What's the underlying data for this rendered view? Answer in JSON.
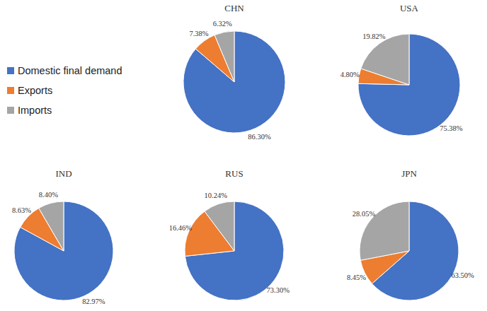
{
  "chart_data": [
    {
      "type": "pie",
      "title": "CHN",
      "categories": [
        "Domestic final demand",
        "Exports",
        "Imports"
      ],
      "values": [
        86.3,
        7.38,
        6.32
      ],
      "value_labels": [
        "86.30%",
        "7.38%",
        "6.32%"
      ],
      "colors": [
        "#4472c4",
        "#ed7d31",
        "#a5a5a5"
      ],
      "data_labels": true,
      "legend": "left"
    },
    {
      "type": "pie",
      "title": "USA",
      "categories": [
        "Domestic final demand",
        "Exports",
        "Imports"
      ],
      "values": [
        75.38,
        4.8,
        19.82
      ],
      "value_labels": [
        "75.38%",
        "4.80%",
        "19.82%"
      ],
      "colors": [
        "#4472c4",
        "#ed7d31",
        "#a5a5a5"
      ],
      "data_labels": true
    },
    {
      "type": "pie",
      "title": "IND",
      "categories": [
        "Domestic final demand",
        "Exports",
        "Imports"
      ],
      "values": [
        82.97,
        8.63,
        8.4
      ],
      "value_labels": [
        "82.97%",
        "8.63%",
        "8.40%"
      ],
      "colors": [
        "#4472c4",
        "#ed7d31",
        "#a5a5a5"
      ],
      "data_labels": true
    },
    {
      "type": "pie",
      "title": "RUS",
      "categories": [
        "Domestic final demand",
        "Exports",
        "Imports"
      ],
      "values": [
        73.3,
        16.46,
        10.24
      ],
      "value_labels": [
        "73.30%",
        "16.46%",
        "10.24%"
      ],
      "colors": [
        "#4472c4",
        "#ed7d31",
        "#a5a5a5"
      ],
      "data_labels": true
    },
    {
      "type": "pie",
      "title": "JPN",
      "categories": [
        "Domestic final demand",
        "Exports",
        "Imports"
      ],
      "values": [
        63.5,
        8.45,
        28.05
      ],
      "value_labels": [
        "63.50%",
        "8.45%",
        "28.05%"
      ],
      "colors": [
        "#4472c4",
        "#ed7d31",
        "#a5a5a5"
      ],
      "data_labels": true
    }
  ]
}
